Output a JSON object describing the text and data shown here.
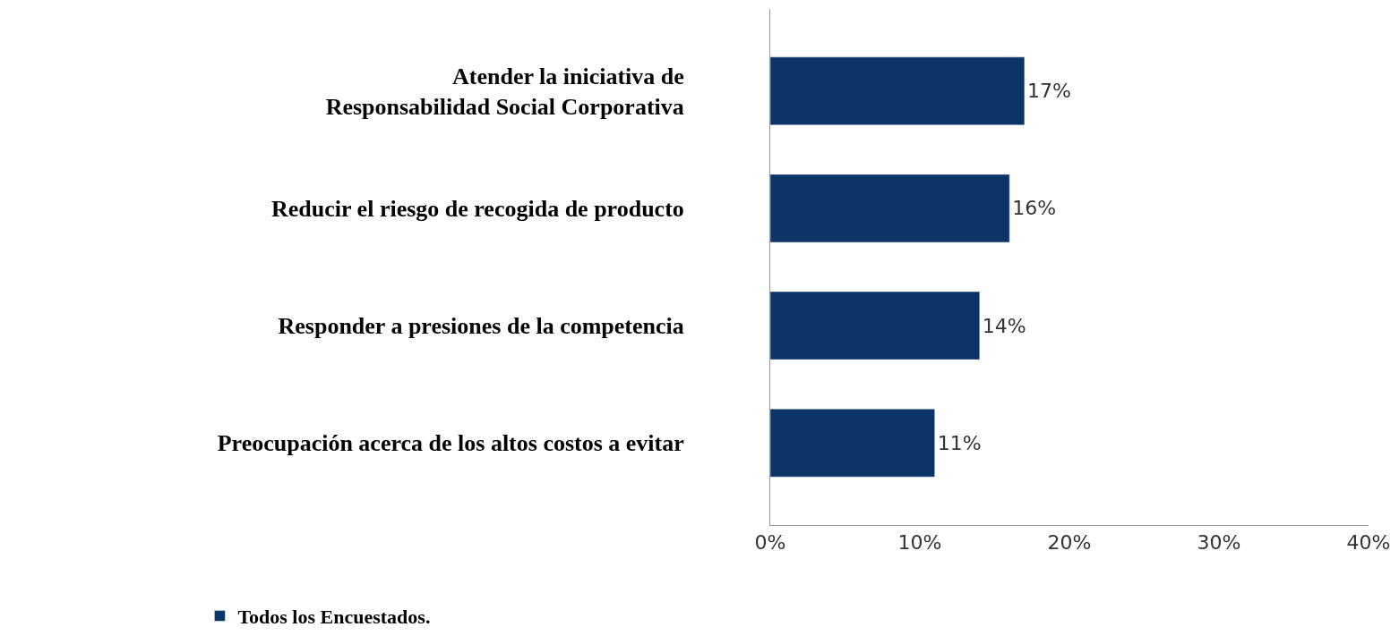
{
  "chart_data": {
    "type": "bar",
    "orientation": "horizontal",
    "categories": [
      "Atender la iniciativa de\nResponsabilidad Social Corporativa",
      "Reducir el riesgo de recogida de producto",
      "Responder a presiones de la competencia",
      "Preocupación acerca de los altos costos a evitar"
    ],
    "series": [
      {
        "name": "Todos los Encuestados.",
        "color": "#0c3466",
        "values": [
          17,
          16,
          14,
          11
        ],
        "value_labels": [
          "17%",
          "16%",
          "14%",
          "11%"
        ]
      }
    ],
    "xlim": [
      0,
      40
    ],
    "xticks": [
      {
        "value": 0,
        "label": "0%"
      },
      {
        "value": 10,
        "label": "10%"
      },
      {
        "value": 20,
        "label": "20%"
      },
      {
        "value": 30,
        "label": "30%"
      },
      {
        "value": 40,
        "label": "40%"
      }
    ],
    "legend": "bottom left"
  }
}
